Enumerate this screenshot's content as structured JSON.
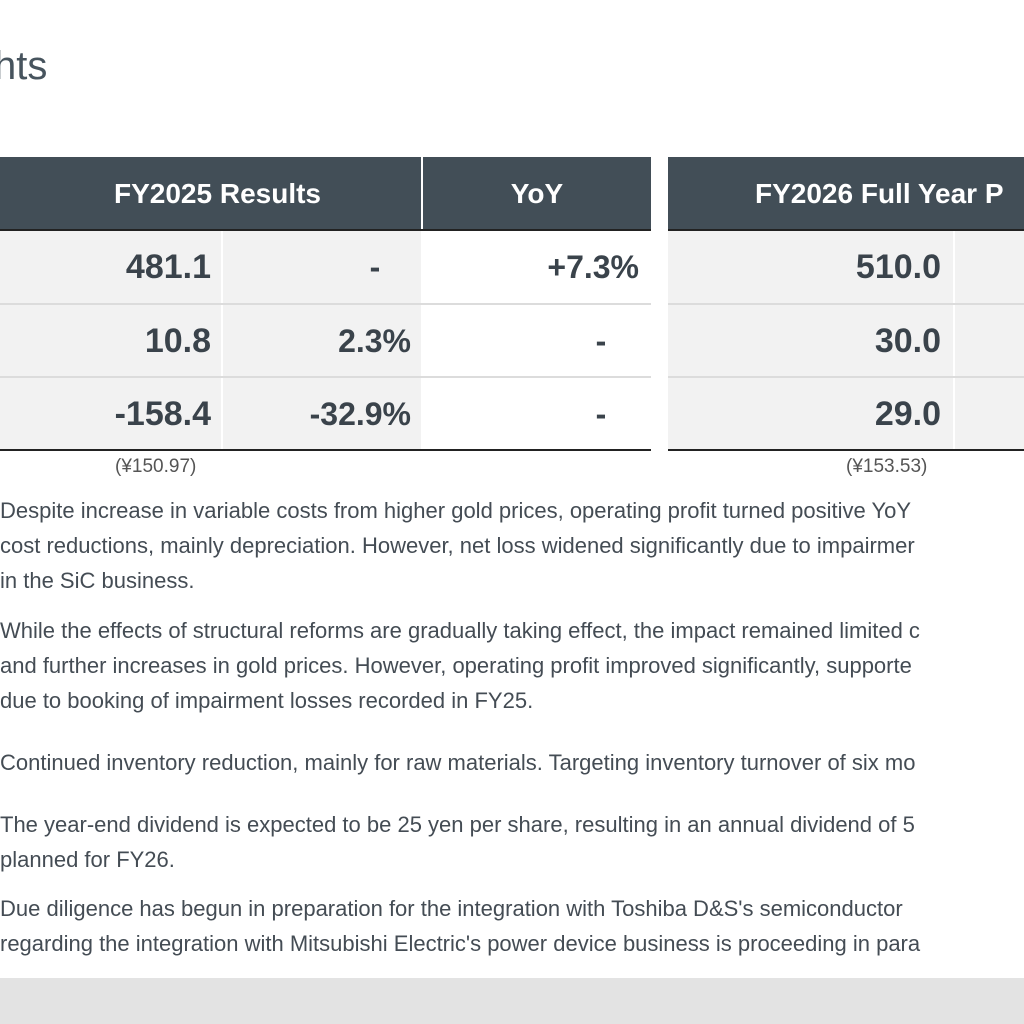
{
  "page_title": "hts",
  "table": {
    "headers": {
      "fy2025": "FY2025 Results",
      "yoy": "YoY",
      "fy2026": "FY2026 Full Year P"
    },
    "rows": [
      {
        "fy2025_value": "481.1",
        "fy2025_margin": "-",
        "yoy": "+7.3%",
        "fy2026_value": "510.0"
      },
      {
        "fy2025_value": "10.8",
        "fy2025_margin": "2.3%",
        "yoy": "-",
        "fy2026_value": "30.0"
      },
      {
        "fy2025_value": "-158.4",
        "fy2025_margin": "-32.9%",
        "yoy": "-",
        "fy2026_value": "29.0"
      }
    ],
    "notes": {
      "fy2025": "(¥150.97)",
      "fy2026": "(¥153.53)"
    }
  },
  "paragraphs": [
    {
      "lines": [
        "Despite increase in variable costs from higher gold prices, operating profit turned positive YoY",
        "cost reductions, mainly depreciation. However, net loss widened significantly due to impairmer",
        "in the SiC business."
      ]
    },
    {
      "lines": [
        "While the effects of structural reforms are gradually taking effect, the impact remained limited c",
        "and further increases in gold prices. However, operating profit improved significantly, supporte",
        "due to booking of impairment losses recorded in FY25."
      ]
    },
    {
      "lines": [
        "Continued inventory reduction, mainly for raw materials. Targeting inventory turnover of six mo"
      ]
    },
    {
      "lines": [
        "The year-end dividend is expected to be 25 yen per share, resulting in an annual dividend of 5",
        "planned for FY26."
      ]
    },
    {
      "lines": [
        "Due diligence has begun in preparation for the integration with Toshiba D&S's semiconductor",
        "regarding the integration with Mitsubishi Electric's power device business is proceeding in para"
      ]
    }
  ]
}
